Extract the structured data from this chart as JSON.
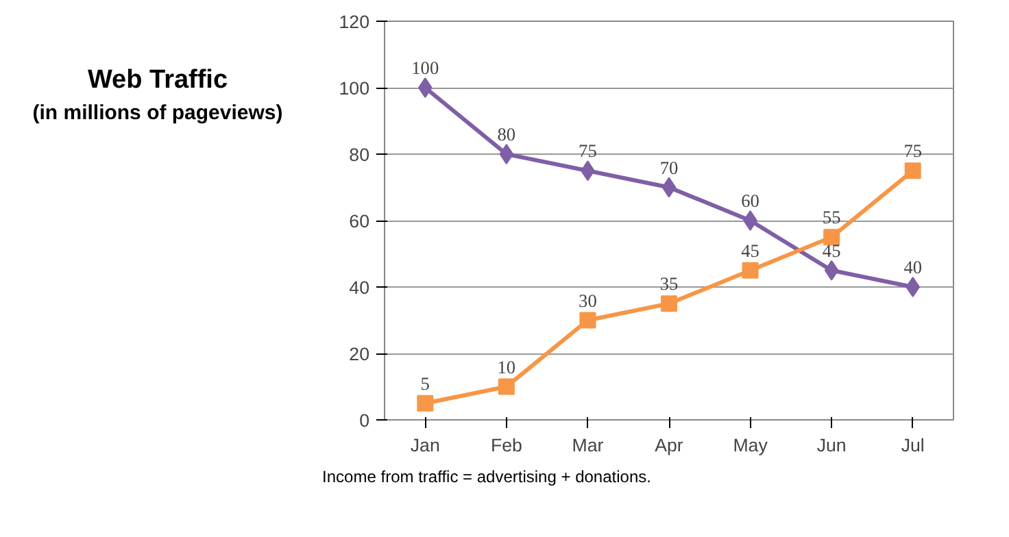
{
  "chart_data": {
    "type": "line",
    "title": "Web Traffic",
    "subtitle": "(in millions of pageviews)",
    "categories": [
      "Jan",
      "Feb",
      "Mar",
      "Apr",
      "May",
      "Jun",
      "Jul"
    ],
    "series": [
      {
        "color": "#7f5fa6",
        "marker": "diamond",
        "values": [
          100,
          80,
          75,
          70,
          60,
          45,
          40
        ]
      },
      {
        "color": "#f79646",
        "marker": "square",
        "values": [
          5,
          10,
          30,
          35,
          45,
          55,
          75
        ]
      }
    ],
    "ylim": [
      0,
      120
    ],
    "yticks": [
      0,
      20,
      40,
      60,
      80,
      100,
      120
    ],
    "grid": "y",
    "data_labels": true,
    "line_style": "solid",
    "annotations": [
      "Income from traffic = advertising + donations."
    ]
  }
}
